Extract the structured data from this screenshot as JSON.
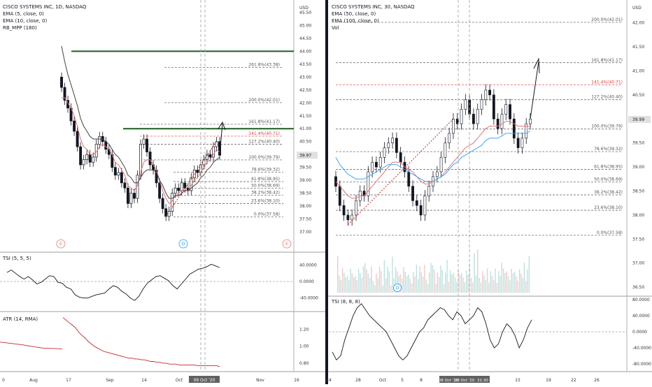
{
  "left_chart": {
    "title": "CISCO SYSTEMS INC, 1D, NASDAQ",
    "indicators": [
      "EMA (5, close, 0)",
      "EMA (10, close, 0)",
      "RB_MPP (180)"
    ],
    "currency": "USD",
    "price_axis": [
      "45.50",
      "45.00",
      "44.50",
      "44.00",
      "43.50",
      "43.00",
      "42.50",
      "42.00",
      "41.50",
      "41.00",
      "40.50",
      "40.00",
      "39.50",
      "39.00",
      "38.50",
      "38.00",
      "37.50",
      "37.00"
    ],
    "last_price": "39.97",
    "fib_levels": [
      {
        "label": "261.8%(43.38)",
        "price": 43.38
      },
      {
        "label": "200.0%(42.01)",
        "price": 42.01
      },
      {
        "label": "161.8%(41.17)",
        "price": 41.17
      },
      {
        "label": "141.4%(40.71)",
        "price": 40.71,
        "color": "#e53935"
      },
      {
        "label": "127.2%(40.40)",
        "price": 40.4
      },
      {
        "label": "100.0%(39.79)",
        "price": 39.79
      },
      {
        "label": "78.6%(39.32)",
        "price": 39.32
      },
      {
        "label": "61.8%(38.95)",
        "price": 38.95
      },
      {
        "label": "50.0%(38.69)",
        "price": 38.69
      },
      {
        "label": "38.2%(38.42)",
        "price": 38.42
      },
      {
        "label": "23.6%(38.10)",
        "price": 38.1
      },
      {
        "label": "0.0%(37.58)",
        "price": 37.58
      }
    ],
    "resistance_levels": [
      44.0,
      41.0
    ],
    "event_markers": [
      "E",
      "D",
      "E"
    ],
    "tsi_title": "TSI (5, 5, 5)",
    "tsi_axis": [
      "40.0000",
      "0.0000",
      "-40.0000"
    ],
    "atr_title": "ATR (14, RMA)",
    "atr_axis": [
      "1.20",
      "1.00",
      "0.80"
    ],
    "time_axis": [
      "Aug",
      "17",
      "Sep",
      "14",
      "Oct",
      "19",
      "Nov",
      "16"
    ],
    "time_highlight": "09 Oct '20",
    "time_start": "0"
  },
  "right_chart": {
    "title": "CISCO SYSTEMS INC, 30, NASDAQ",
    "indicators": [
      "EMA (50, close, 0)",
      "EMA (100, close, 0)",
      "Vol"
    ],
    "currency": "USD",
    "price_axis": [
      "42.00",
      "41.50",
      "41.00",
      "40.50",
      "40.00",
      "39.50",
      "39.00",
      "38.50",
      "38.00",
      "37.50",
      "37.00",
      "36.50"
    ],
    "last_price": "39.99",
    "fib_levels": [
      {
        "label": "200.0%(42.01)",
        "price": 42.01
      },
      {
        "label": "161.8%(41.17)",
        "price": 41.17
      },
      {
        "label": "141.4%(40.71)",
        "price": 40.71,
        "color": "#e53935"
      },
      {
        "label": "127.2%(40.40)",
        "price": 40.4
      },
      {
        "label": "100.0%(39.79)",
        "price": 39.79
      },
      {
        "label": "78.6%(39.32)",
        "price": 39.32
      },
      {
        "label": "61.8%(38.95)",
        "price": 38.95
      },
      {
        "label": "50.0%(38.69)",
        "price": 38.69
      },
      {
        "label": "38.2%(38.42)",
        "price": 38.42
      },
      {
        "label": "23.6%(38.10)",
        "price": 38.1
      },
      {
        "label": "0.0%(37.58)",
        "price": 37.58
      }
    ],
    "event_markers": [
      "D"
    ],
    "tsi_title": "TSI (8, 8, 8)",
    "tsi_axis": [
      "80.0000",
      "40.0000",
      "0.0000",
      "-40.0000",
      "-80.0000"
    ],
    "time_axis": [
      "24",
      "28",
      "Oct",
      "5",
      "8",
      "12",
      "15",
      "19",
      "22",
      "26"
    ],
    "time_highlight_a": "08 Oct '20",
    "time_highlight_b": "09 Oct '20",
    "time_highlight_c": "21:30"
  },
  "chart_data": [
    {
      "type": "candlestick",
      "title": "CISCO SYSTEMS INC, 1D, NASDAQ",
      "ylim": [
        36.8,
        45.8
      ],
      "closes": [
        42.6,
        42.1,
        41.8,
        41.3,
        40.9,
        40.3,
        39.6,
        39.8,
        40.0,
        39.7,
        39.9,
        40.4,
        40.7,
        40.5,
        40.2,
        40.0,
        39.5,
        39.2,
        39.3,
        38.9,
        38.7,
        38.1,
        38.5,
        38.3,
        39.2,
        40.4,
        40.6,
        40.1,
        39.6,
        39.4,
        38.9,
        38.3,
        37.9,
        37.6,
        37.8,
        38.5,
        38.7,
        38.6,
        38.9,
        38.7,
        38.6,
        39.1,
        39.4,
        39.3,
        39.6,
        39.8,
        40.0,
        39.9,
        40.3,
        40.5,
        39.97
      ],
      "ema5": [
        42.2,
        42.2,
        42.0,
        41.8,
        41.5,
        41.1,
        40.6,
        40.3,
        40.2,
        40.0,
        40.0,
        40.1,
        40.3,
        40.4,
        40.3,
        40.2,
        40.0,
        39.7,
        39.6,
        39.4,
        39.2,
        38.8,
        38.7,
        38.6,
        38.8,
        39.3,
        39.7,
        39.8,
        39.8,
        39.6,
        39.4,
        39.0,
        38.6,
        38.3,
        38.1,
        38.2,
        38.4,
        38.5,
        38.6,
        38.6,
        38.6,
        38.8,
        39.0,
        39.1,
        39.3,
        39.5,
        39.7,
        39.8,
        40.0,
        40.2,
        40.1
      ],
      "ema10": [
        44.2,
        43.6,
        43.1,
        42.7,
        42.3,
        41.9,
        41.4,
        41.1,
        40.9,
        40.7,
        40.6,
        40.6,
        40.6,
        40.6,
        40.5,
        40.4,
        40.2,
        40.0,
        39.9,
        39.7,
        39.5,
        39.2,
        39.1,
        38.9,
        38.9,
        39.1,
        39.3,
        39.4,
        39.4,
        39.4,
        39.3,
        39.0,
        38.8,
        38.5,
        38.3,
        38.3,
        38.4,
        38.4,
        38.5,
        38.6,
        38.6,
        38.7,
        38.8,
        38.9,
        39.1,
        39.2,
        39.4,
        39.5,
        39.7,
        39.8,
        39.9
      ],
      "tsi": [
        22,
        28,
        20,
        12,
        6,
        12,
        4,
        -6,
        -2,
        6,
        14,
        12,
        -2,
        -4,
        -14,
        -18,
        -32,
        -38,
        -40,
        -40,
        -36,
        -32,
        -30,
        -28,
        -18,
        -10,
        -14,
        -24,
        -30,
        -40,
        -46,
        -36,
        -18,
        -4,
        4,
        12,
        14,
        8,
        2,
        -10,
        -18,
        -6,
        6,
        18,
        24,
        30,
        32,
        36,
        42,
        38,
        34
      ],
      "atr": [
        1.34,
        1.31,
        1.28,
        1.25,
        1.22,
        1.17,
        1.13,
        1.1,
        1.06,
        1.03,
        1.0,
        0.98,
        0.96,
        0.94,
        0.93,
        0.92,
        0.91,
        0.9,
        0.89,
        0.88,
        0.87,
        0.86,
        0.86,
        0.85,
        0.85,
        0.84,
        0.84,
        0.83,
        0.82,
        0.82,
        0.81,
        0.81,
        0.8,
        0.8,
        0.79,
        0.79,
        0.79,
        0.78,
        0.78,
        0.78,
        0.78,
        0.78,
        0.78,
        0.77,
        0.77,
        0.77,
        0.77,
        0.77,
        0.77,
        0.77,
        0.76
      ]
    },
    {
      "type": "candlestick",
      "title": "CISCO SYSTEMS INC, 30, NASDAQ",
      "ylim": [
        36.4,
        42.3
      ],
      "closes": [
        38.6,
        38.2,
        38.0,
        37.9,
        38.0,
        38.3,
        38.5,
        38.4,
        38.9,
        39.1,
        39.0,
        39.2,
        39.4,
        39.5,
        39.6,
        39.3,
        39.1,
        38.9,
        38.6,
        38.3,
        38.2,
        38.0,
        38.4,
        38.6,
        38.8,
        38.9,
        39.2,
        39.5,
        39.7,
        40.0,
        39.9,
        40.2,
        40.4,
        40.1,
        39.9,
        40.2,
        40.4,
        40.6,
        40.5,
        40.0,
        39.8,
        40.1,
        40.3,
        40.0,
        39.6,
        39.4,
        39.6,
        39.9,
        40.0
      ],
      "ema50": [
        38.7,
        38.6,
        38.5,
        38.4,
        38.35,
        38.35,
        38.4,
        38.4,
        38.5,
        38.6,
        38.7,
        38.8,
        38.9,
        39.0,
        39.1,
        39.1,
        39.1,
        39.0,
        38.95,
        38.9,
        38.8,
        38.7,
        38.65,
        38.65,
        38.7,
        38.75,
        38.8,
        38.9,
        39.0,
        39.1,
        39.2,
        39.3,
        39.4,
        39.45,
        39.5,
        39.6,
        39.7,
        39.8,
        39.85,
        39.85,
        39.85,
        39.9,
        39.95,
        39.95,
        39.9,
        39.85,
        39.85,
        39.85,
        39.85
      ],
      "ema100": [
        39.2,
        39.05,
        38.95,
        38.85,
        38.8,
        38.75,
        38.75,
        38.75,
        38.8,
        38.85,
        38.9,
        38.95,
        39.0,
        39.05,
        39.05,
        39.05,
        39.0,
        38.95,
        38.9,
        38.85,
        38.8,
        38.75,
        38.7,
        38.7,
        38.7,
        38.75,
        38.8,
        38.85,
        38.95,
        39.05,
        39.1,
        39.2,
        39.25,
        39.3,
        39.35,
        39.4,
        39.45,
        39.55,
        39.6,
        39.6,
        39.6,
        39.65,
        39.7,
        39.7,
        39.7,
        39.7,
        39.7,
        39.7,
        39.75
      ],
      "tsi": [
        -50,
        -70,
        -60,
        -20,
        10,
        40,
        60,
        70,
        55,
        40,
        30,
        20,
        10,
        0,
        -20,
        -40,
        -60,
        -70,
        -60,
        -40,
        -20,
        0,
        10,
        30,
        40,
        50,
        60,
        55,
        40,
        30,
        50,
        40,
        20,
        30,
        40,
        60,
        50,
        20,
        -20,
        -40,
        -30,
        0,
        20,
        10,
        -10,
        -40,
        -20,
        10,
        30
      ]
    }
  ]
}
